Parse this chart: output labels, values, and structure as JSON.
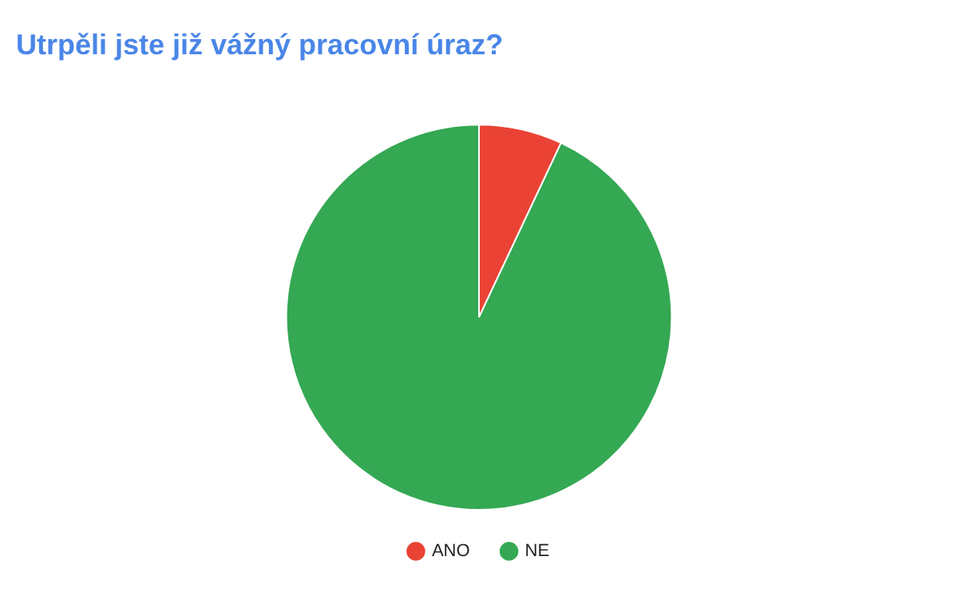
{
  "chart_data": {
    "type": "pie",
    "title": "Utrpěli jste již vážný pracovní úraz?",
    "categories": [
      "ANO",
      "NE"
    ],
    "values": [
      7,
      93
    ],
    "colors": [
      "#ea4335",
      "#34a853"
    ],
    "legend": "bottom"
  }
}
